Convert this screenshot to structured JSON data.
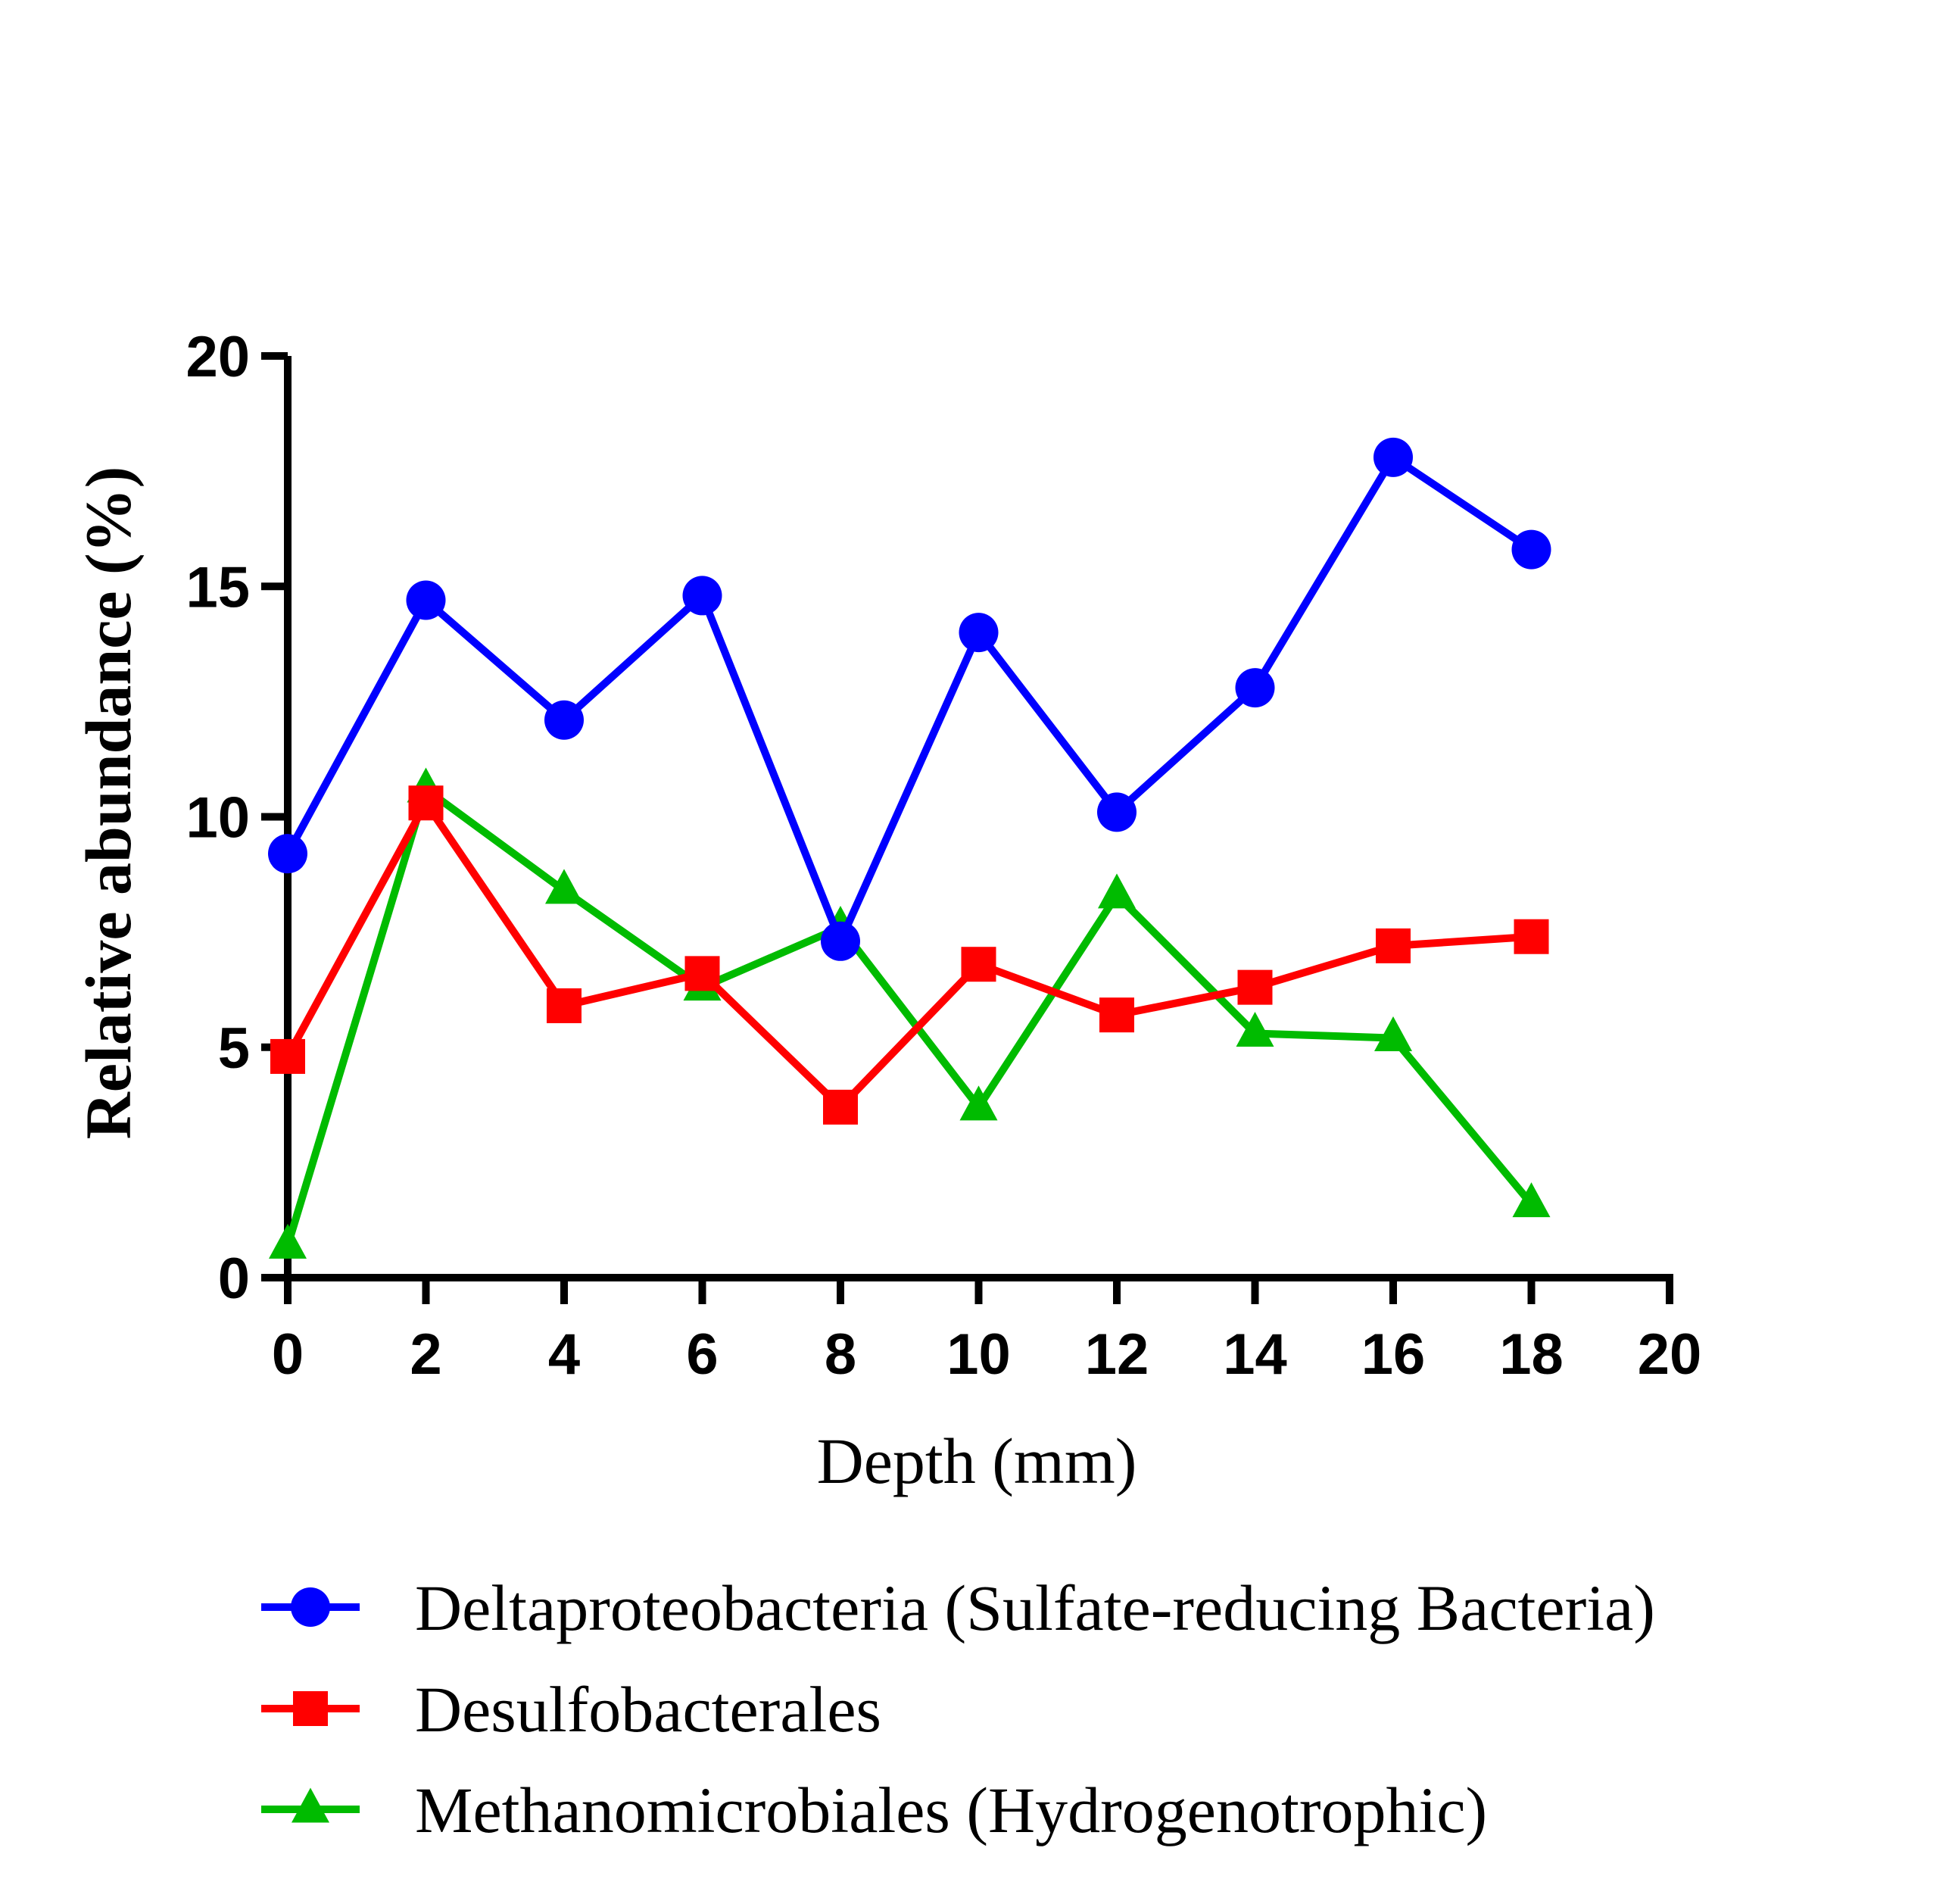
{
  "chart_data": {
    "type": "line",
    "title": "",
    "xlabel": "Depth (mm)",
    "ylabel": "Relative abundance (%)",
    "xlim": [
      0,
      20
    ],
    "ylim": [
      0,
      20
    ],
    "xticks": [
      "0",
      "2",
      "4",
      "6",
      "8",
      "10",
      "12",
      "14",
      "16",
      "18",
      "20"
    ],
    "yticks": [
      "0",
      "5",
      "10",
      "15",
      "20"
    ],
    "grid": false,
    "legend_position": "bottom",
    "x": [
      0,
      2,
      4,
      6,
      8,
      10,
      12,
      14,
      16,
      18
    ],
    "series": [
      {
        "name": "Deltaproteobacteria (Sulfate-reducing Bacteria)",
        "color": "#0000ff",
        "marker": "circle",
        "values": [
          9.2,
          14.7,
          12.1,
          14.8,
          7.3,
          14.0,
          10.1,
          12.8,
          17.8,
          15.8
        ]
      },
      {
        "name": "Desulfobacterales",
        "color": "#ff0000",
        "marker": "square",
        "values": [
          4.8,
          10.3,
          5.9,
          6.6,
          3.7,
          6.8,
          5.7,
          6.3,
          7.2,
          7.4
        ]
      },
      {
        "name": "Methanomicrobiales (Hydrogenotrophic)",
        "color": "#00bb00",
        "marker": "triangle",
        "values": [
          0.7,
          10.6,
          8.4,
          6.3,
          7.6,
          3.7,
          8.3,
          5.3,
          5.2,
          1.6
        ]
      }
    ]
  }
}
